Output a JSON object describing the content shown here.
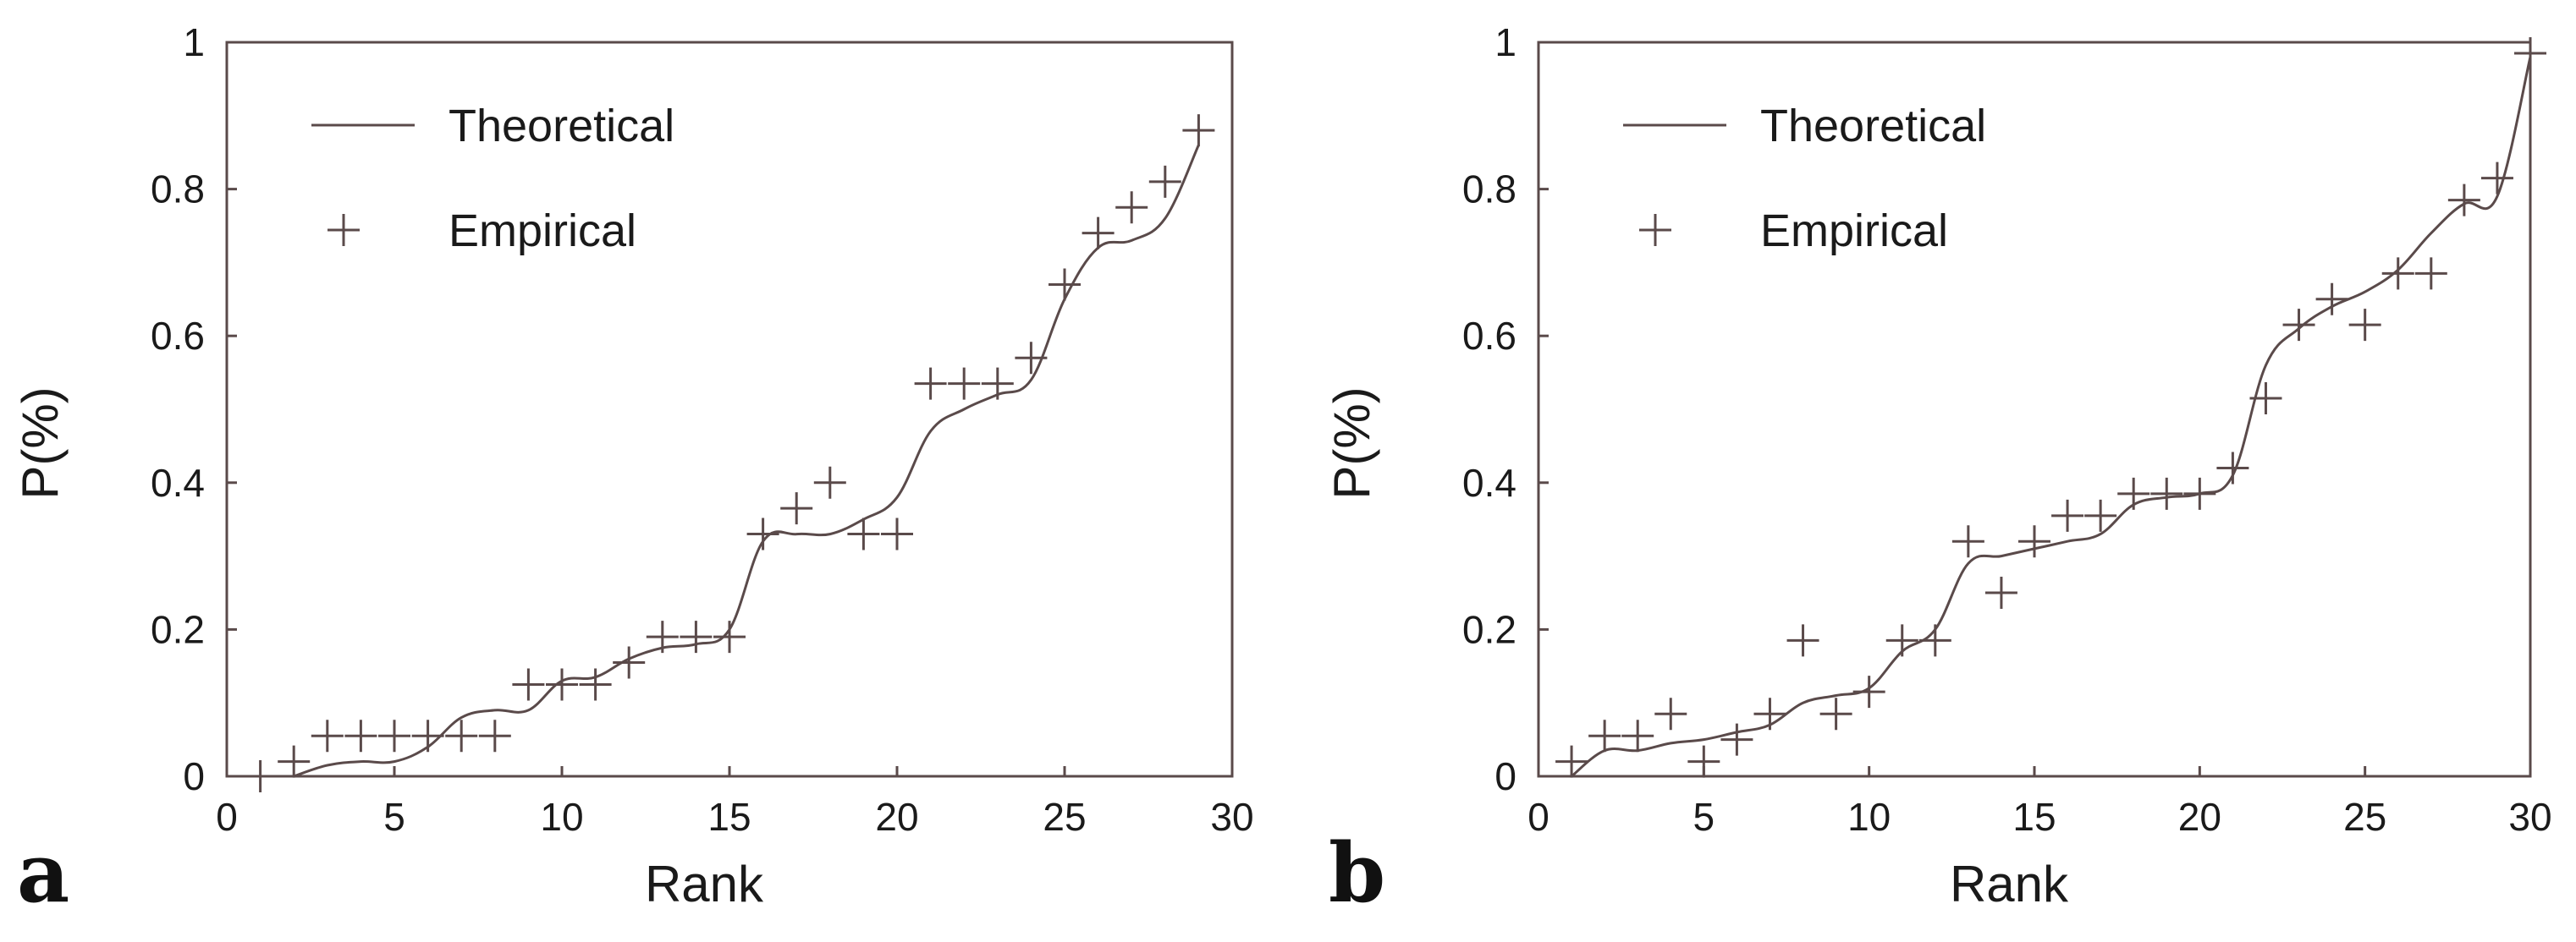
{
  "chart_data": [
    {
      "type": "line",
      "panel_label": "a",
      "xlabel": "Rank",
      "ylabel": "P(%)",
      "xlim": [
        0,
        30
      ],
      "ylim": [
        0,
        1
      ],
      "x_ticks": [
        0,
        5,
        10,
        15,
        20,
        25,
        30
      ],
      "y_ticks": [
        0,
        0.2,
        0.4,
        0.6,
        0.8,
        1
      ],
      "y_tick_labels": [
        "0",
        "0.2",
        "0.4",
        "0.6",
        "0.8",
        "1"
      ],
      "grid": false,
      "legend_position": "top-left",
      "series": [
        {
          "name": "Theoretical",
          "style": "line",
          "color": "#5a4a4a",
          "x": [
            2,
            3,
            4,
            5,
            6,
            7,
            8,
            9,
            10,
            11,
            12,
            13,
            14,
            15,
            16,
            17,
            18,
            19,
            20,
            21,
            22,
            23,
            24,
            25,
            26,
            27,
            28,
            29
          ],
          "y": [
            0.0,
            0.015,
            0.02,
            0.02,
            0.04,
            0.08,
            0.09,
            0.09,
            0.13,
            0.135,
            0.16,
            0.175,
            0.18,
            0.2,
            0.32,
            0.33,
            0.33,
            0.35,
            0.38,
            0.47,
            0.5,
            0.52,
            0.54,
            0.65,
            0.72,
            0.73,
            0.76,
            0.86
          ]
        },
        {
          "name": "Empirical",
          "style": "plus",
          "color": "#5a4a4a",
          "x": [
            1,
            2,
            3,
            4,
            5,
            6,
            7,
            8,
            9,
            10,
            11,
            12,
            13,
            14,
            15,
            16,
            17,
            18,
            19,
            20,
            21,
            22,
            23,
            24,
            25,
            26,
            27,
            28,
            29
          ],
          "y": [
            0.0,
            0.02,
            0.055,
            0.055,
            0.055,
            0.055,
            0.055,
            0.055,
            0.125,
            0.125,
            0.125,
            0.155,
            0.19,
            0.19,
            0.19,
            0.33,
            0.365,
            0.4,
            0.33,
            0.33,
            0.535,
            0.535,
            0.535,
            0.57,
            0.67,
            0.74,
            0.775,
            0.81,
            0.88
          ]
        }
      ]
    },
    {
      "type": "line",
      "panel_label": "b",
      "xlabel": "Rank",
      "ylabel": "P(%)",
      "xlim": [
        0,
        30
      ],
      "ylim": [
        0,
        1
      ],
      "x_ticks": [
        0,
        5,
        10,
        15,
        20,
        25,
        30
      ],
      "y_ticks": [
        0,
        0.2,
        0.4,
        0.6,
        0.8,
        1
      ],
      "y_tick_labels": [
        "0",
        "0.2",
        "0.4",
        "0.6",
        "0.8",
        "1"
      ],
      "grid": false,
      "legend_position": "top-left",
      "series": [
        {
          "name": "Theoretical",
          "style": "line",
          "color": "#5a4a4a",
          "x": [
            1,
            2,
            3,
            4,
            5,
            6,
            7,
            8,
            9,
            10,
            11,
            12,
            13,
            14,
            15,
            16,
            17,
            18,
            19,
            20,
            21,
            22,
            23,
            24,
            25,
            26,
            27,
            28,
            29,
            30
          ],
          "y": [
            0.0,
            0.035,
            0.035,
            0.045,
            0.05,
            0.06,
            0.07,
            0.1,
            0.11,
            0.12,
            0.17,
            0.2,
            0.29,
            0.3,
            0.31,
            0.32,
            0.33,
            0.37,
            0.38,
            0.385,
            0.41,
            0.56,
            0.61,
            0.64,
            0.66,
            0.69,
            0.74,
            0.78,
            0.79,
            0.98
          ]
        },
        {
          "name": "Empirical",
          "style": "plus",
          "color": "#5a4a4a",
          "x": [
            1,
            2,
            3,
            4,
            5,
            6,
            7,
            8,
            9,
            10,
            11,
            12,
            13,
            14,
            15,
            16,
            17,
            18,
            19,
            20,
            21,
            22,
            23,
            24,
            25,
            26,
            27,
            28,
            29,
            30
          ],
          "y": [
            0.02,
            0.055,
            0.055,
            0.085,
            0.02,
            0.05,
            0.085,
            0.185,
            0.085,
            0.115,
            0.185,
            0.185,
            0.32,
            0.25,
            0.32,
            0.355,
            0.355,
            0.385,
            0.385,
            0.385,
            0.42,
            0.515,
            0.615,
            0.65,
            0.615,
            0.685,
            0.685,
            0.785,
            0.815,
            0.985
          ]
        }
      ]
    }
  ]
}
